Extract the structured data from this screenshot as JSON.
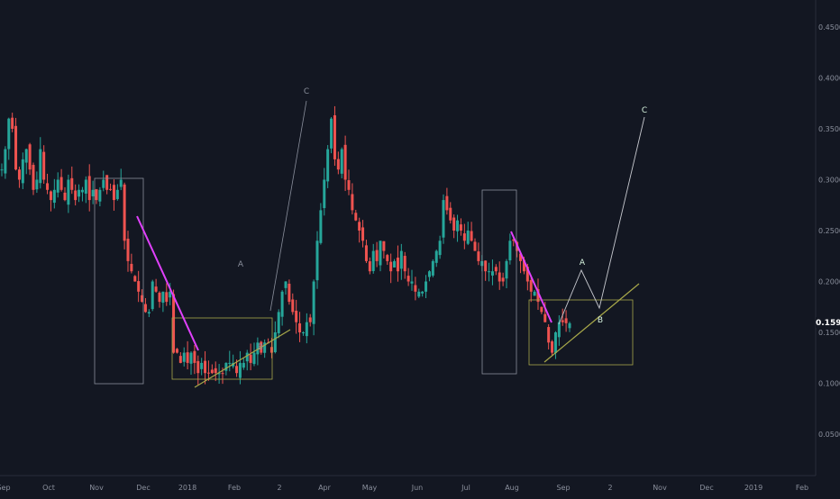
{
  "colors": {
    "background": "#131722",
    "axis_text": "#8a8f9c",
    "axis_line": "#2a2e39",
    "up": "#26a69a",
    "down": "#ef5350",
    "magenta": "#e040fb",
    "olive": "#a8a84a",
    "white_line": "#c7c9cf",
    "rect_gray": "#8a8f9c",
    "price_label": "#ffffff"
  },
  "chart_data": {
    "type": "candlestick",
    "x_axis_labels": [
      "Sep",
      "Oct",
      "Nov",
      "Dec",
      "2018",
      "Feb",
      "2",
      "Apr",
      "May",
      "Jun",
      "Jul",
      "Aug",
      "Sep",
      "2",
      "Nov",
      "Dec",
      "2019",
      "Feb"
    ],
    "y_axis_labels": [
      "0.4500",
      "0.4000",
      "0.3500",
      "0.3000",
      "0.2500",
      "0.2000",
      "0.1500",
      "0.1000",
      "0.0500"
    ],
    "y_ticks": [
      0.45,
      0.4,
      0.35,
      0.3,
      0.25,
      0.2,
      0.15,
      0.1,
      0.05
    ],
    "ylim": [
      0.0,
      0.47
    ],
    "current_price": "0.1590",
    "annotations": [
      {
        "id": "wave-a-1",
        "label": "A",
        "value": 0.205
      },
      {
        "id": "wave-b-1",
        "label": "B",
        "value": 0.135
      },
      {
        "id": "wave-c-1",
        "label": "C",
        "value": 0.385
      },
      {
        "id": "wave-a-2",
        "label": "A",
        "value": 0.21
      },
      {
        "id": "wave-b-2",
        "label": "B",
        "value": 0.165
      },
      {
        "id": "wave-c-2",
        "label": "C",
        "value": 0.36
      }
    ],
    "series_close_profile": [
      0.31,
      0.33,
      0.36,
      0.35,
      0.31,
      0.3,
      0.32,
      0.33,
      0.31,
      0.29,
      0.3,
      0.33,
      0.3,
      0.29,
      0.28,
      0.29,
      0.3,
      0.29,
      0.28,
      0.3,
      0.29,
      0.28,
      0.29,
      0.29,
      0.3,
      0.28,
      0.29,
      0.28,
      0.29,
      0.3,
      0.29,
      0.29,
      0.28,
      0.29,
      0.3,
      0.24,
      0.22,
      0.21,
      0.2,
      0.19,
      0.18,
      0.17,
      0.17,
      0.2,
      0.19,
      0.18,
      0.19,
      0.18,
      0.19,
      0.13,
      0.13,
      0.12,
      0.13,
      0.12,
      0.13,
      0.12,
      0.11,
      0.12,
      0.11,
      0.11,
      0.11,
      0.11,
      0.11,
      0.11,
      0.12,
      0.12,
      0.12,
      0.11,
      0.12,
      0.12,
      0.13,
      0.12,
      0.13,
      0.14,
      0.13,
      0.14,
      0.14,
      0.13,
      0.15,
      0.17,
      0.19,
      0.2,
      0.18,
      0.17,
      0.16,
      0.15,
      0.15,
      0.16,
      0.16,
      0.2,
      0.24,
      0.27,
      0.3,
      0.33,
      0.36,
      0.32,
      0.31,
      0.33,
      0.3,
      0.29,
      0.27,
      0.26,
      0.25,
      0.24,
      0.22,
      0.21,
      0.23,
      0.22,
      0.24,
      0.23,
      0.22,
      0.21,
      0.22,
      0.21,
      0.23,
      0.21,
      0.2,
      0.2,
      0.19,
      0.19,
      0.19,
      0.2,
      0.21,
      0.22,
      0.23,
      0.24,
      0.28,
      0.27,
      0.26,
      0.25,
      0.26,
      0.25,
      0.24,
      0.25,
      0.24,
      0.23,
      0.22,
      0.22,
      0.21,
      0.21,
      0.21,
      0.21,
      0.2,
      0.2,
      0.22,
      0.24,
      0.24,
      0.23,
      0.22,
      0.21,
      0.2,
      0.19,
      0.19,
      0.18,
      0.17,
      0.16,
      0.14,
      0.13,
      0.15,
      0.16,
      0.16,
      0.159,
      0.159
    ]
  }
}
